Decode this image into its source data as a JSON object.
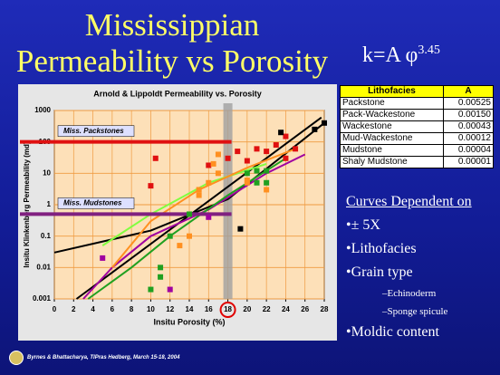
{
  "slide": {
    "title": [
      "Mississippian",
      "Permeability vs Porosity"
    ],
    "formula": {
      "lhs": "k=A",
      "symbol": "φ",
      "exponent": "3.45"
    },
    "table": {
      "header": [
        "Lithofacies",
        "A"
      ],
      "rows": [
        [
          "Packstone",
          "0.00525"
        ],
        [
          "Pack-Wackestone",
          "0.00150"
        ],
        [
          "Wackestone",
          "0.00043"
        ],
        [
          "Mud-Wackestone",
          "0.00012"
        ],
        [
          "Mudstone",
          "0.00004"
        ],
        [
          "Shaly Mudstone",
          "0.00001"
        ]
      ]
    },
    "bullets": [
      {
        "level": 0,
        "text": "Curves Dependent on"
      },
      {
        "level": 1,
        "text": "± 5X"
      },
      {
        "level": 1,
        "text": "Lithofacies"
      },
      {
        "level": 1,
        "text": "Grain type"
      },
      {
        "level": 2,
        "text": "Echinoderm"
      },
      {
        "level": 2,
        "text": "Sponge spicule"
      },
      {
        "level": 1,
        "text": "Moldic content"
      }
    ],
    "footer": "Byrnes & Bhattacharya, TIPras Hedberg, March 15-18, 2004"
  },
  "chart_data": {
    "type": "scatter",
    "title": "Arnold & Lippoldt Permeability vs. Porosity",
    "x_label": "Insitu Porosity (%)",
    "y_label": "Insitu Klinkenberg Permeability (md)",
    "xlim": [
      0,
      28
    ],
    "xticks": [
      0,
      2,
      4,
      6,
      8,
      10,
      12,
      14,
      16,
      18,
      20,
      22,
      24,
      26,
      28
    ],
    "ylim": [
      0.001,
      1000
    ],
    "yticks": [
      0.001,
      0.01,
      0.1,
      1,
      10,
      100,
      1000
    ],
    "log_y": true,
    "grid": true,
    "highlight_x": 18,
    "reference_lines": [
      {
        "label": "Miss. Packstones",
        "value": 100,
        "color": "#e01010"
      },
      {
        "label": "Miss. Mudstones",
        "value": 0.5,
        "color": "#802080"
      }
    ],
    "lines": [
      {
        "color": "#000000",
        "x": [
          2.3,
          27.7
        ],
        "values": [
          0.001,
          600
        ]
      },
      {
        "color": "#000000",
        "x": [
          0,
          10,
          18,
          28
        ],
        "values": [
          0.03,
          0.15,
          1.5,
          400
        ]
      },
      {
        "color": "#a000a0",
        "x": [
          3,
          6,
          10,
          16,
          22,
          26
        ],
        "values": [
          0.001,
          0.01,
          0.1,
          0.7,
          10,
          40
        ]
      },
      {
        "color": "#20a020",
        "x": [
          3.5,
          8,
          12,
          18,
          24
        ],
        "values": [
          0.001,
          0.01,
          0.1,
          2,
          30
        ]
      },
      {
        "color": "#80ff40",
        "x": [
          5,
          10,
          16,
          22
        ],
        "values": [
          0.05,
          0.5,
          5,
          20
        ]
      },
      {
        "color": "#ff9020",
        "x": [
          6,
          10,
          15,
          20,
          25
        ],
        "values": [
          0.01,
          0.3,
          3,
          15,
          60
        ]
      }
    ],
    "series": [
      {
        "color": "#e01010",
        "x": [
          10.5,
          10,
          16,
          18,
          19,
          20,
          21,
          22,
          23,
          24,
          25,
          24
        ],
        "values": [
          30,
          4,
          18,
          30,
          50,
          25,
          60,
          50,
          80,
          30,
          60,
          150
        ]
      },
      {
        "color": "#000000",
        "x": [
          23.5,
          28,
          27,
          19.3
        ],
        "values": [
          200,
          400,
          250,
          0.17
        ]
      },
      {
        "color": "#a000a0",
        "x": [
          5,
          12,
          16
        ],
        "values": [
          0.02,
          0.002,
          0.4
        ]
      },
      {
        "color": "#20a020",
        "x": [
          10,
          11,
          12,
          11,
          14,
          20,
          21,
          22,
          22,
          21
        ],
        "values": [
          0.002,
          0.005,
          0.1,
          0.01,
          0.5,
          10,
          5,
          12,
          5,
          12
        ]
      },
      {
        "color": "#ff9020",
        "x": [
          13,
          14,
          15,
          16,
          16.5,
          17,
          17,
          15,
          20,
          22,
          20
        ],
        "values": [
          0.05,
          0.1,
          2,
          5,
          20,
          10,
          40,
          3,
          5,
          3,
          6
        ]
      }
    ]
  }
}
